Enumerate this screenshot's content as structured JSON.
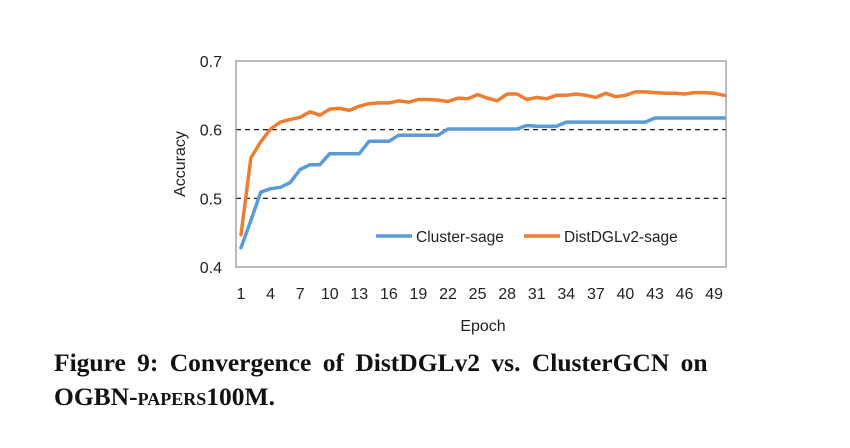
{
  "chart_data": {
    "type": "line",
    "xlabel": "Epoch",
    "ylabel": "Accuracy",
    "x_tick_labels": [
      "1",
      "4",
      "7",
      "10",
      "13",
      "16",
      "19",
      "22",
      "25",
      "28",
      "31",
      "34",
      "37",
      "40",
      "43",
      "46",
      "49"
    ],
    "y_tick_labels": [
      "0.4",
      "0.5",
      "0.6",
      "0.7"
    ],
    "ylim": [
      0.4,
      0.7
    ],
    "xlim": [
      1,
      50
    ],
    "grid": "dashed horizontal lines at 0.5 and 0.6",
    "legend_position": "bottom-right inside plot",
    "x": [
      1,
      2,
      3,
      4,
      5,
      6,
      7,
      8,
      9,
      10,
      11,
      12,
      13,
      14,
      15,
      16,
      17,
      18,
      19,
      20,
      21,
      22,
      23,
      24,
      25,
      26,
      27,
      28,
      29,
      30,
      31,
      32,
      33,
      34,
      35,
      36,
      37,
      38,
      39,
      40,
      41,
      42,
      43,
      44,
      45,
      46,
      47,
      48,
      49,
      50
    ],
    "series": [
      {
        "name": "Cluster-sage",
        "color": "#5b9bd5",
        "values": [
          0.428,
          0.468,
          0.509,
          0.514,
          0.516,
          0.523,
          0.542,
          0.549,
          0.549,
          0.565,
          0.565,
          0.565,
          0.565,
          0.583,
          0.583,
          0.583,
          0.592,
          0.592,
          0.592,
          0.592,
          0.592,
          0.601,
          0.601,
          0.601,
          0.601,
          0.601,
          0.601,
          0.601,
          0.601,
          0.606,
          0.605,
          0.605,
          0.605,
          0.611,
          0.611,
          0.611,
          0.611,
          0.611,
          0.611,
          0.611,
          0.611,
          0.611,
          0.617,
          0.617,
          0.617,
          0.617,
          0.617,
          0.617,
          0.617,
          0.617
        ]
      },
      {
        "name": "DistDGLv2-sage",
        "color": "#ed7d31",
        "values": [
          0.447,
          0.559,
          0.582,
          0.601,
          0.611,
          0.615,
          0.618,
          0.626,
          0.621,
          0.63,
          0.631,
          0.628,
          0.634,
          0.638,
          0.639,
          0.639,
          0.642,
          0.64,
          0.644,
          0.644,
          0.643,
          0.641,
          0.646,
          0.645,
          0.651,
          0.646,
          0.642,
          0.652,
          0.652,
          0.644,
          0.647,
          0.645,
          0.65,
          0.65,
          0.652,
          0.65,
          0.647,
          0.653,
          0.648,
          0.65,
          0.655,
          0.655,
          0.654,
          0.653,
          0.653,
          0.652,
          0.654,
          0.654,
          0.653,
          0.65
        ]
      }
    ]
  },
  "caption": {
    "line1": "Figure 9: Convergence of DistDGLv2 vs. ClusterGCN on",
    "line2_prefix": "OGBN-",
    "line2_smallcaps": "papers",
    "line2_suffix": "100M."
  }
}
